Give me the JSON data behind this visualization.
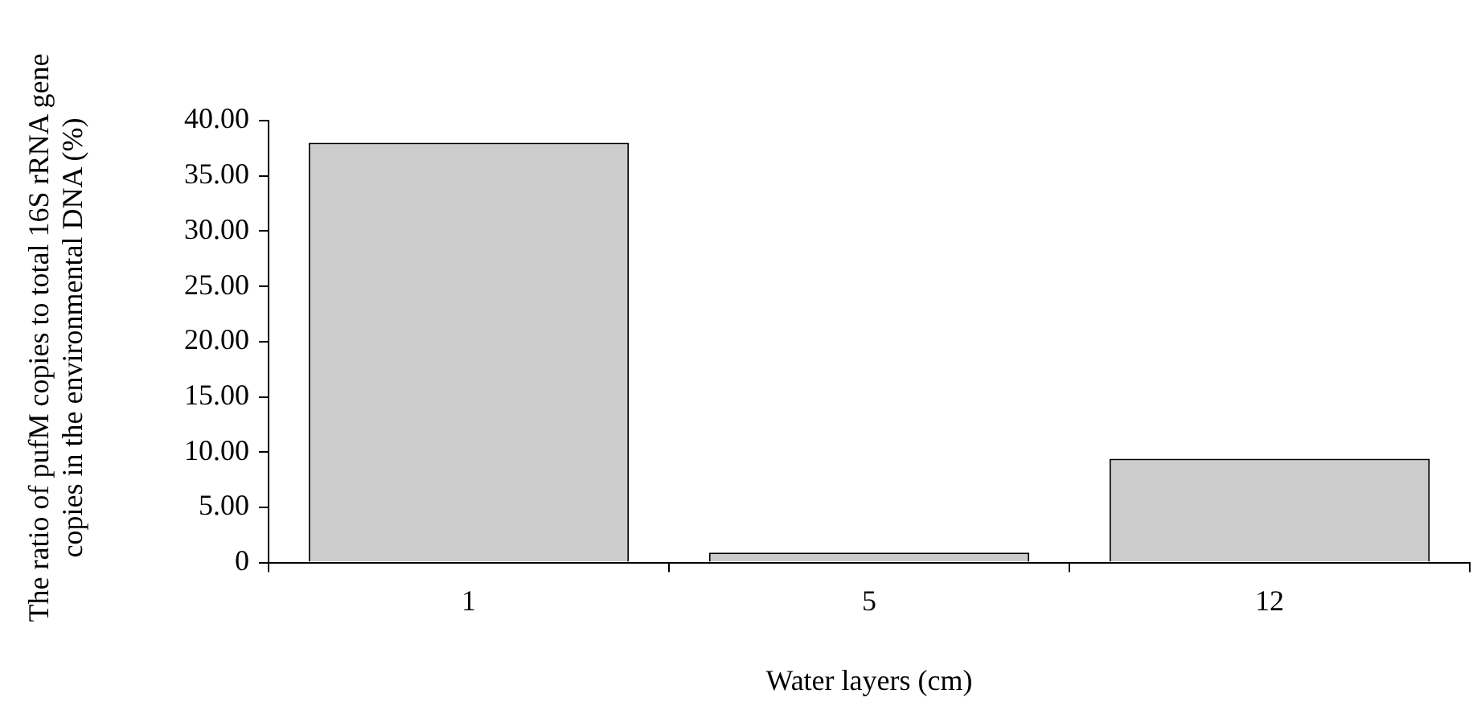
{
  "chart_data": {
    "type": "bar",
    "xlabel": "Water layers (cm)",
    "ylabel": "The ratio of pufM copies to total 16S rRNA gene copies in the environmental DNA (%)",
    "categories": [
      "1",
      "5",
      "12"
    ],
    "values": [
      38.0,
      0.9,
      9.4
    ],
    "color": "#cccccc",
    "ylim": [
      0,
      40
    ],
    "yticks": [
      {
        "value": 0,
        "label": "0"
      },
      {
        "value": 5,
        "label": "5.00"
      },
      {
        "value": 10,
        "label": "10.00"
      },
      {
        "value": 15,
        "label": "15.00"
      },
      {
        "value": 20,
        "label": "20.00"
      },
      {
        "value": 25,
        "label": "25.00"
      },
      {
        "value": 30,
        "label": "30.00"
      },
      {
        "value": 35,
        "label": "35.00"
      },
      {
        "value": 40,
        "label": "40.00"
      }
    ],
    "grid": false,
    "legend": false
  }
}
